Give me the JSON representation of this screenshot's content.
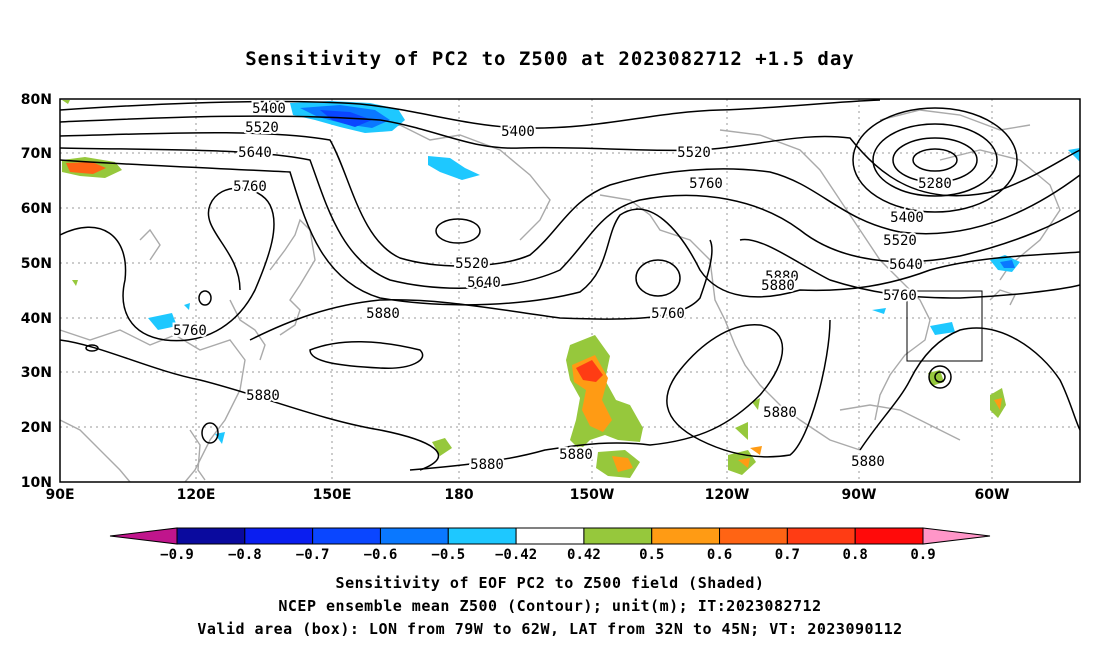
{
  "title": "Sensitivity of PC2 to Z500 at 2023082712 +1.5 day",
  "lat_labels": [
    "80N",
    "70N",
    "60N",
    "50N",
    "40N",
    "30N",
    "20N",
    "10N"
  ],
  "lon_labels": [
    "90E",
    "120E",
    "150E",
    "180",
    "150W",
    "120W",
    "90W",
    "60W"
  ],
  "contour_labels": [
    "5400",
    "5520",
    "5400",
    "5640",
    "5520",
    "5760",
    "5280",
    "5760",
    "5400",
    "5520",
    "5640",
    "5520",
    "5640",
    "5880",
    "5880",
    "5880",
    "5760",
    "5760",
    "5880",
    "5760",
    "5880",
    "5880",
    "5880",
    "5880"
  ],
  "colorbar": {
    "colors": [
      "#c0158c",
      "#0a0a9e",
      "#0a1ef0",
      "#0a46ff",
      "#0a78ff",
      "#1ec8ff",
      "#ffffff",
      "#96c83c",
      "#ff9b14",
      "#ff6414",
      "#ff3c14",
      "#ff0a0a",
      "#ff96c8"
    ],
    "labels": [
      "-0.9",
      "-0.8",
      "-0.7",
      "-0.6",
      "-0.5",
      "-0.42",
      "0.42",
      "0.5",
      "0.6",
      "0.7",
      "0.8",
      "0.9"
    ]
  },
  "captions": [
    "Sensitivity of EOF PC2 to Z500 field (Shaded)",
    "NCEP ensemble mean Z500 (Contour); unit(m); IT:2023082712",
    "Valid area (box): LON from 79W to 62W, LAT from 32N to 45N; VT: 2023090112"
  ]
}
